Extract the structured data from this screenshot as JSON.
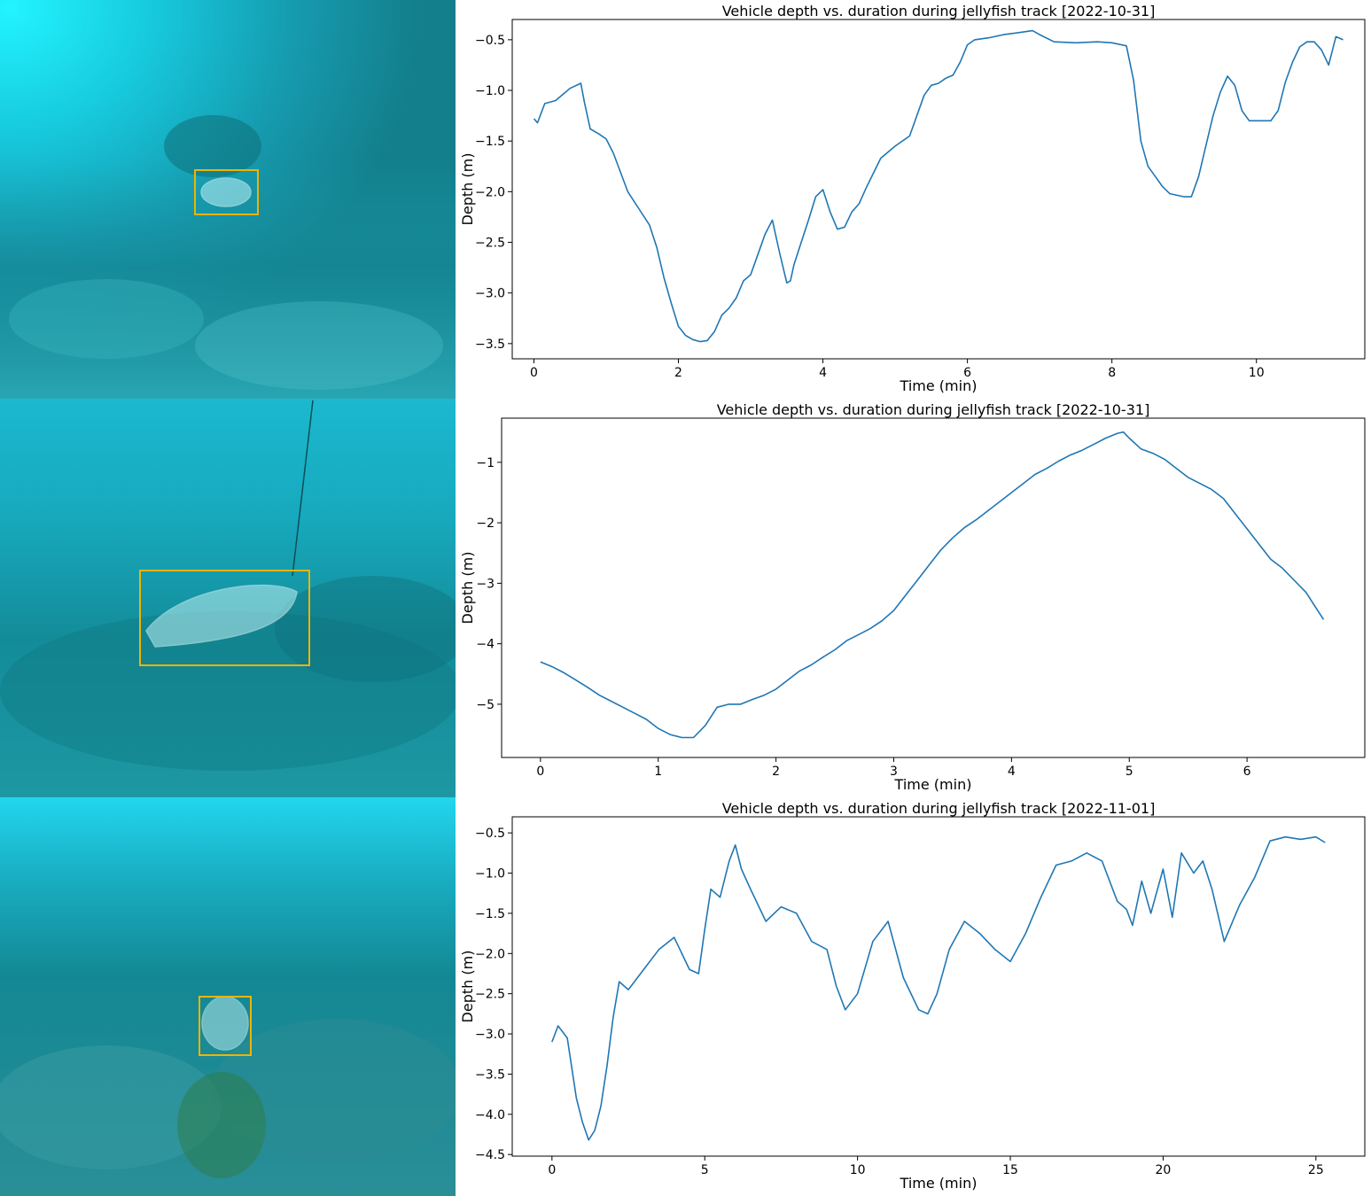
{
  "colors": {
    "series_line": "#1f77b4",
    "detection_box": "#f0b400"
  },
  "photos": [
    {
      "scene": "jellyfish-above-reef",
      "icon": "jellyfish-icon"
    },
    {
      "scene": "jellyfish-near-reef-with-tether",
      "icon": "jellyfish-icon"
    },
    {
      "scene": "jellyfish-over-seabed",
      "icon": "jellyfish-icon"
    }
  ],
  "chart_data": [
    {
      "type": "line",
      "title": "Vehicle depth vs. duration during jellyfish track [2022-10-31]",
      "xlabel": "Time (min)",
      "ylabel": "Depth (m)",
      "xlim": [
        -0.3,
        11.5
      ],
      "ylim": [
        -3.65,
        -0.3
      ],
      "xticks": [
        0,
        2,
        4,
        6,
        8,
        10
      ],
      "xtick_labels": [
        "0",
        "2",
        "4",
        "6",
        "8",
        "10"
      ],
      "yticks": [
        -3.5,
        -3.0,
        -2.5,
        -2.0,
        -1.5,
        -1.0,
        -0.5
      ],
      "ytick_labels": [
        "−3.5",
        "−3.0",
        "−2.5",
        "−2.0",
        "−1.5",
        "−1.0",
        "−0.5"
      ],
      "grid": false,
      "series": [
        {
          "x": [
            0,
            0.05,
            0.15,
            0.3,
            0.5,
            0.65,
            0.7,
            0.78,
            0.9,
            1.0,
            1.1,
            1.3,
            1.5,
            1.6,
            1.7,
            1.8,
            1.9,
            2.0,
            2.1,
            2.2,
            2.3,
            2.4,
            2.5,
            2.6,
            2.7,
            2.8,
            2.9,
            3.0,
            3.1,
            3.2,
            3.3,
            3.4,
            3.5,
            3.55,
            3.6,
            3.7,
            3.8,
            3.9,
            4.0,
            4.1,
            4.2,
            4.3,
            4.4,
            4.5,
            4.6,
            4.8,
            5.0,
            5.2,
            5.4,
            5.5,
            5.6,
            5.7,
            5.8,
            5.9,
            6.0,
            6.1,
            6.3,
            6.5,
            6.7,
            6.9,
            7.0,
            7.2,
            7.5,
            7.8,
            8.0,
            8.2,
            8.3,
            8.4,
            8.5,
            8.6,
            8.7,
            8.8,
            9.0,
            9.1,
            9.2,
            9.3,
            9.4,
            9.5,
            9.6,
            9.7,
            9.8,
            9.9,
            10.0,
            10.2,
            10.3,
            10.4,
            10.5,
            10.6,
            10.7,
            10.8,
            10.9,
            11.0,
            11.1,
            11.2
          ],
          "y": [
            -1.28,
            -1.32,
            -1.13,
            -1.1,
            -0.98,
            -0.93,
            -1.12,
            -1.38,
            -1.43,
            -1.48,
            -1.62,
            -2.0,
            -2.22,
            -2.33,
            -2.55,
            -2.85,
            -3.1,
            -3.33,
            -3.42,
            -3.46,
            -3.48,
            -3.47,
            -3.38,
            -3.22,
            -3.15,
            -3.05,
            -2.88,
            -2.82,
            -2.62,
            -2.42,
            -2.28,
            -2.6,
            -2.9,
            -2.88,
            -2.72,
            -2.5,
            -2.28,
            -2.05,
            -1.98,
            -2.2,
            -2.37,
            -2.35,
            -2.2,
            -2.12,
            -1.96,
            -1.67,
            -1.55,
            -1.45,
            -1.05,
            -0.95,
            -0.93,
            -0.88,
            -0.85,
            -0.72,
            -0.55,
            -0.5,
            -0.48,
            -0.45,
            -0.43,
            -0.41,
            -0.45,
            -0.52,
            -0.53,
            -0.52,
            -0.53,
            -0.56,
            -0.9,
            -1.5,
            -1.75,
            -1.85,
            -1.95,
            -2.02,
            -2.05,
            -2.05,
            -1.85,
            -1.55,
            -1.25,
            -1.02,
            -0.86,
            -0.95,
            -1.2,
            -1.3,
            -1.3,
            -1.3,
            -1.2,
            -0.92,
            -0.72,
            -0.57,
            -0.52,
            -0.52,
            -0.6,
            -0.75,
            -0.47,
            -0.5
          ]
        }
      ]
    },
    {
      "type": "line",
      "title": "Vehicle depth vs. duration during jellyfish track [2022-10-31]",
      "xlabel": "Time (min)",
      "ylabel": "Depth (m)",
      "xlim": [
        -0.33,
        7.0
      ],
      "ylim": [
        -5.88,
        -0.27
      ],
      "xticks": [
        0,
        1,
        2,
        3,
        4,
        5,
        6
      ],
      "xtick_labels": [
        "0",
        "1",
        "2",
        "3",
        "4",
        "5",
        "6"
      ],
      "yticks": [
        -5,
        -4,
        -3,
        -2,
        -1
      ],
      "ytick_labels": [
        "−5",
        "−4",
        "−3",
        "−2",
        "−1"
      ],
      "grid": false,
      "series": [
        {
          "x": [
            0,
            0.1,
            0.2,
            0.3,
            0.4,
            0.5,
            0.6,
            0.7,
            0.8,
            0.9,
            1.0,
            1.1,
            1.2,
            1.3,
            1.4,
            1.5,
            1.6,
            1.7,
            1.8,
            1.9,
            2.0,
            2.1,
            2.2,
            2.3,
            2.4,
            2.5,
            2.6,
            2.7,
            2.8,
            2.9,
            3.0,
            3.1,
            3.2,
            3.3,
            3.4,
            3.5,
            3.6,
            3.7,
            3.8,
            3.9,
            4.0,
            4.1,
            4.2,
            4.3,
            4.4,
            4.5,
            4.6,
            4.7,
            4.8,
            4.9,
            4.95,
            5.0,
            5.1,
            5.2,
            5.3,
            5.4,
            5.5,
            5.6,
            5.7,
            5.8,
            5.9,
            6.0,
            6.1,
            6.2,
            6.3,
            6.4,
            6.5,
            6.6,
            6.65
          ],
          "y": [
            -4.3,
            -4.38,
            -4.48,
            -4.6,
            -4.72,
            -4.85,
            -4.95,
            -5.05,
            -5.15,
            -5.25,
            -5.4,
            -5.5,
            -5.55,
            -5.55,
            -5.35,
            -5.05,
            -5.0,
            -5.0,
            -4.92,
            -4.85,
            -4.75,
            -4.6,
            -4.45,
            -4.35,
            -4.22,
            -4.1,
            -3.95,
            -3.85,
            -3.75,
            -3.62,
            -3.45,
            -3.2,
            -2.95,
            -2.7,
            -2.45,
            -2.25,
            -2.08,
            -1.95,
            -1.8,
            -1.65,
            -1.5,
            -1.35,
            -1.2,
            -1.1,
            -0.98,
            -0.88,
            -0.8,
            -0.7,
            -0.6,
            -0.52,
            -0.5,
            -0.6,
            -0.78,
            -0.85,
            -0.95,
            -1.1,
            -1.25,
            -1.35,
            -1.45,
            -1.6,
            -1.85,
            -2.1,
            -2.35,
            -2.6,
            -2.75,
            -2.95,
            -3.15,
            -3.45,
            -3.6
          ]
        }
      ]
    },
    {
      "type": "line",
      "title": "Vehicle depth vs. duration during jellyfish track [2022-11-01]",
      "xlabel": "Time (min)",
      "ylabel": "Depth (m)",
      "xlim": [
        -1.3,
        26.6
      ],
      "ylim": [
        -4.52,
        -0.3
      ],
      "xticks": [
        0,
        5,
        10,
        15,
        20,
        25
      ],
      "xtick_labels": [
        "0",
        "5",
        "10",
        "15",
        "20",
        "25"
      ],
      "yticks": [
        -4.5,
        -4.0,
        -3.5,
        -3.0,
        -2.5,
        -2.0,
        -1.5,
        -1.0,
        -0.5
      ],
      "ytick_labels": [
        "−4.5",
        "−4.0",
        "−3.5",
        "−3.0",
        "−2.5",
        "−2.0",
        "−1.5",
        "−1.0",
        "−0.5"
      ],
      "grid": false,
      "series": [
        {
          "x": [
            0,
            0.2,
            0.5,
            0.8,
            1.0,
            1.2,
            1.4,
            1.6,
            1.8,
            2.0,
            2.2,
            2.5,
            3.0,
            3.5,
            4.0,
            4.5,
            4.8,
            5.0,
            5.2,
            5.5,
            5.8,
            6.0,
            6.2,
            6.5,
            7.0,
            7.5,
            8.0,
            8.5,
            9.0,
            9.3,
            9.6,
            10.0,
            10.5,
            11.0,
            11.5,
            12.0,
            12.3,
            12.6,
            13.0,
            13.5,
            14.0,
            14.5,
            15.0,
            15.5,
            16.0,
            16.5,
            17.0,
            17.5,
            18.0,
            18.5,
            18.8,
            19.0,
            19.3,
            19.6,
            20.0,
            20.3,
            20.6,
            21.0,
            21.3,
            21.6,
            22.0,
            22.5,
            23.0,
            23.5,
            24.0,
            24.5,
            25.0,
            25.3
          ],
          "y": [
            -3.1,
            -2.9,
            -3.05,
            -3.8,
            -4.1,
            -4.32,
            -4.2,
            -3.9,
            -3.4,
            -2.8,
            -2.35,
            -2.45,
            -2.2,
            -1.95,
            -1.8,
            -2.2,
            -2.25,
            -1.7,
            -1.2,
            -1.3,
            -0.85,
            -0.65,
            -0.95,
            -1.2,
            -1.6,
            -1.42,
            -1.5,
            -1.85,
            -1.95,
            -2.4,
            -2.7,
            -2.5,
            -1.85,
            -1.6,
            -2.3,
            -2.7,
            -2.75,
            -2.5,
            -1.95,
            -1.6,
            -1.75,
            -1.95,
            -2.1,
            -1.75,
            -1.3,
            -0.9,
            -0.85,
            -0.75,
            -0.85,
            -1.35,
            -1.45,
            -1.65,
            -1.1,
            -1.5,
            -0.95,
            -1.55,
            -0.75,
            -1.0,
            -0.85,
            -1.2,
            -1.85,
            -1.4,
            -1.05,
            -0.6,
            -0.55,
            -0.58,
            -0.55,
            -0.62
          ]
        }
      ]
    }
  ]
}
